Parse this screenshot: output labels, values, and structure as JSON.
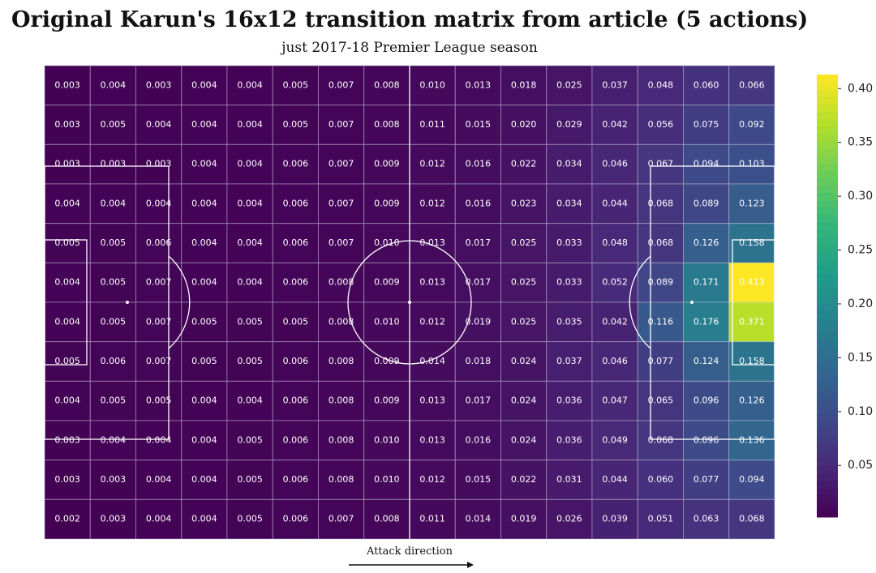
{
  "chart_data": {
    "type": "heatmap",
    "title": "Original Karun's 16x12 transition matrix from article (5 actions)",
    "subtitle": "just 2017-18 Premier League season",
    "annotation": "Attack direction",
    "colormap": "viridis",
    "clim": [
      0.002,
      0.413
    ],
    "colorbar_ticks": [
      0.05,
      {
        "value": 0.1,
        "label": "0.10"
      },
      0.15,
      {
        "value": 0.2,
        "label": "0.20"
      },
      0.25,
      {
        "value": 0.3,
        "label": "0.30"
      },
      0.35,
      {
        "value": 0.4,
        "label": "0.40"
      }
    ],
    "values": [
      [
        0.003,
        0.004,
        0.003,
        0.004,
        0.004,
        0.005,
        0.007,
        0.008,
        0.01,
        0.013,
        0.018,
        0.025,
        0.037,
        0.048,
        0.06,
        0.066
      ],
      [
        0.003,
        0.005,
        0.004,
        0.004,
        0.004,
        0.005,
        0.007,
        0.008,
        0.011,
        0.015,
        0.02,
        0.029,
        0.042,
        0.056,
        0.075,
        0.092
      ],
      [
        0.003,
        0.003,
        0.003,
        0.004,
        0.004,
        0.006,
        0.007,
        0.009,
        0.012,
        0.016,
        0.022,
        0.034,
        0.046,
        0.067,
        0.094,
        0.103
      ],
      [
        0.004,
        0.004,
        0.004,
        0.004,
        0.004,
        0.006,
        0.007,
        0.009,
        0.012,
        0.016,
        0.023,
        0.034,
        0.044,
        0.068,
        0.089,
        0.123
      ],
      [
        0.005,
        0.005,
        0.006,
        0.004,
        0.004,
        0.006,
        0.007,
        0.01,
        0.013,
        0.017,
        0.025,
        0.033,
        0.048,
        0.068,
        0.126,
        0.158
      ],
      [
        0.004,
        0.005,
        0.007,
        0.004,
        0.004,
        0.006,
        0.008,
        0.009,
        0.013,
        0.017,
        0.025,
        0.033,
        0.052,
        0.089,
        0.171,
        0.413
      ],
      [
        0.004,
        0.005,
        0.007,
        0.005,
        0.005,
        0.005,
        0.008,
        0.01,
        0.012,
        0.019,
        0.025,
        0.035,
        0.042,
        0.116,
        0.176,
        0.371
      ],
      [
        0.005,
        0.006,
        0.007,
        0.005,
        0.005,
        0.006,
        0.008,
        0.009,
        0.014,
        0.018,
        0.024,
        0.037,
        0.046,
        0.077,
        0.124,
        0.158
      ],
      [
        0.004,
        0.005,
        0.005,
        0.004,
        0.004,
        0.006,
        0.008,
        0.009,
        0.013,
        0.017,
        0.024,
        0.036,
        0.047,
        0.065,
        0.096,
        0.126
      ],
      [
        0.003,
        0.004,
        0.004,
        0.004,
        0.005,
        0.006,
        0.008,
        0.01,
        0.013,
        0.016,
        0.024,
        0.036,
        0.049,
        0.068,
        0.096,
        0.136
      ],
      [
        0.003,
        0.003,
        0.004,
        0.004,
        0.005,
        0.006,
        0.008,
        0.01,
        0.012,
        0.015,
        0.022,
        0.031,
        0.044,
        0.06,
        0.077,
        0.094
      ],
      [
        0.002,
        0.003,
        0.004,
        0.004,
        0.005,
        0.006,
        0.007,
        0.008,
        0.011,
        0.014,
        0.019,
        0.026,
        0.039,
        0.051,
        0.063,
        0.068
      ]
    ],
    "value_labels": [
      [
        "0.003",
        "0.004",
        "0.003",
        "0.004",
        "0.004",
        "0.005",
        "0.007",
        "0.008",
        "0.010",
        "0.013",
        "0.018",
        "0.025",
        "0.037",
        "0.048",
        "0.060",
        "0.066"
      ],
      [
        "0.003",
        "0.005",
        "0.004",
        "0.004",
        "0.004",
        "0.005",
        "0.007",
        "0.008",
        "0.011",
        "0.015",
        "0.020",
        "0.029",
        "0.042",
        "0.056",
        "0.075",
        "0.092"
      ],
      [
        "0.003",
        "0.003",
        "0.003",
        "0.004",
        "0.004",
        "0.006",
        "0.007",
        "0.009",
        "0.012",
        "0.016",
        "0.022",
        "0.034",
        "0.046",
        "0.067",
        "0.094",
        "0.103"
      ],
      [
        "0.004",
        "0.004",
        "0.004",
        "0.004",
        "0.004",
        "0.006",
        "0.007",
        "0.009",
        "0.012",
        "0.016",
        "0.023",
        "0.034",
        "0.044",
        "0.068",
        "0.089",
        "0.123"
      ],
      [
        "0.005",
        "0.005",
        "0.006",
        "0.004",
        "0.004",
        "0.006",
        "0.007",
        "0.010",
        "0.013",
        "0.017",
        "0.025",
        "0.033",
        "0.048",
        "0.068",
        "0.126",
        "0.158"
      ],
      [
        "0.004",
        "0.005",
        "0.007",
        "0.004",
        "0.004",
        "0.006",
        "0.008",
        "0.009",
        "0.013",
        "0.017",
        "0.025",
        "0.033",
        "0.052",
        "0.089",
        "0.171",
        "0.413"
      ],
      [
        "0.004",
        "0.005",
        "0.007",
        "0.005",
        "0.005",
        "0.005",
        "0.008",
        "0.010",
        "0.012",
        "0.019",
        "0.025",
        "0.035",
        "0.042",
        "0.116",
        "0.176",
        "0.371"
      ],
      [
        "0.005",
        "0.006",
        "0.007",
        "0.005",
        "0.005",
        "0.006",
        "0.008",
        "0.009",
        "0.014",
        "0.018",
        "0.024",
        "0.037",
        "0.046",
        "0.077",
        "0.124",
        "0.158"
      ],
      [
        "0.004",
        "0.005",
        "0.005",
        "0.004",
        "0.004",
        "0.006",
        "0.008",
        "0.009",
        "0.013",
        "0.017",
        "0.024",
        "0.036",
        "0.047",
        "0.065",
        "0.096",
        "0.126"
      ],
      [
        "0.003",
        "0.004",
        "0.004",
        "0.004",
        "0.005",
        "0.006",
        "0.008",
        "0.010",
        "0.013",
        "0.016",
        "0.024",
        "0.036",
        "0.049",
        "0.068",
        "0.096",
        "0.136"
      ],
      [
        "0.003",
        "0.003",
        "0.004",
        "0.004",
        "0.005",
        "0.006",
        "0.008",
        "0.010",
        "0.012",
        "0.015",
        "0.022",
        "0.031",
        "0.044",
        "0.060",
        "0.077",
        "0.094"
      ],
      [
        "0.002",
        "0.003",
        "0.004",
        "0.004",
        "0.005",
        "0.006",
        "0.007",
        "0.008",
        "0.011",
        "0.014",
        "0.019",
        "0.026",
        "0.039",
        "0.051",
        "0.063",
        "0.068"
      ]
    ]
  }
}
